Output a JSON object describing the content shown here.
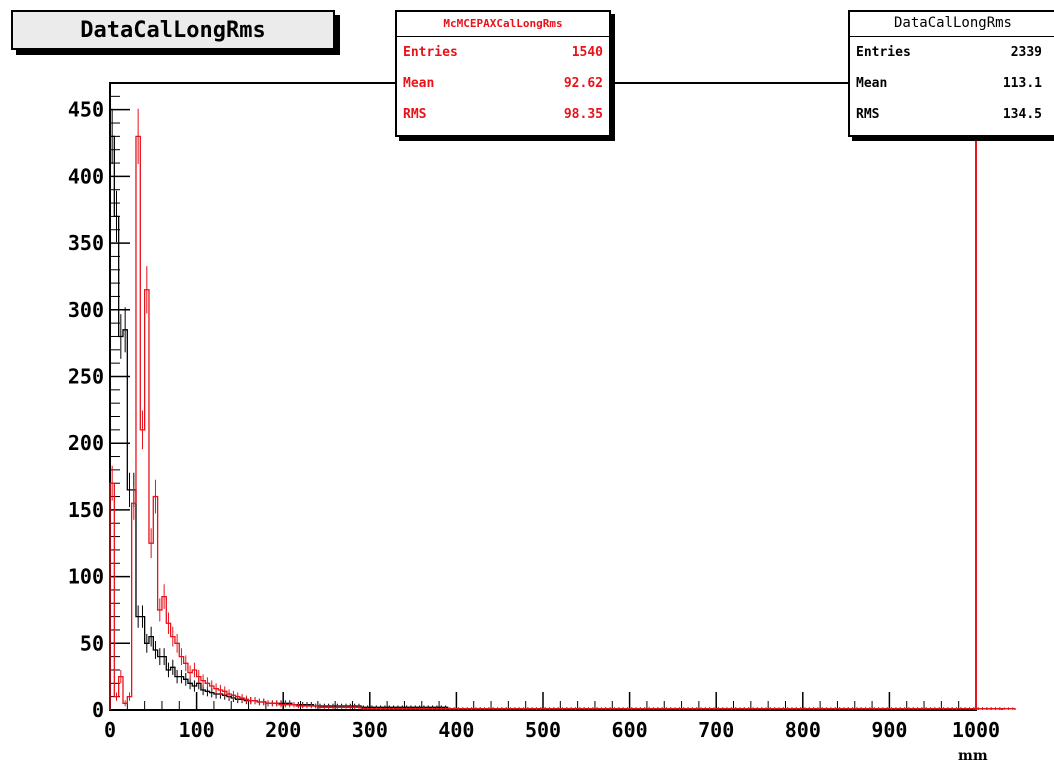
{
  "title": "DataCalLongRms",
  "stats_mc": {
    "name": "McMCEPAXCalLongRms",
    "rows": [
      {
        "label": "Entries",
        "value": "1540"
      },
      {
        "label": "Mean",
        "value": "92.62"
      },
      {
        "label": "RMS",
        "value": "98.35"
      }
    ]
  },
  "stats_data": {
    "name": "DataCalLongRms",
    "rows": [
      {
        "label": "Entries",
        "value": "2339"
      },
      {
        "label": "Mean",
        "value": "113.1"
      },
      {
        "label": "RMS",
        "value": "134.5"
      }
    ]
  },
  "colors": {
    "data": "#000000",
    "mc": "#e8121b"
  },
  "chart_data": {
    "type": "histogram",
    "title": "DataCalLongRms",
    "xlabel": "mm",
    "ylabel": "",
    "xlim": [
      0,
      1000
    ],
    "ylim": [
      0,
      470
    ],
    "x_ticks": [
      0,
      100,
      200,
      300,
      400,
      500,
      600,
      700,
      800,
      900,
      1000
    ],
    "x_tick_labels": [
      "0",
      "100",
      "200",
      "300",
      "400",
      "500",
      "600",
      "700",
      "800",
      "900",
      "1000"
    ],
    "y_ticks": [
      0,
      50,
      100,
      150,
      200,
      250,
      300,
      350,
      400,
      450
    ],
    "y_tick_labels": [
      "0",
      "50",
      "100",
      "150",
      "200",
      "250",
      "300",
      "350",
      "400",
      "450"
    ],
    "bin_width": 5,
    "series": [
      {
        "name": "DataCalLongRms",
        "color": "#000000",
        "values": [
          430,
          370,
          280,
          285,
          165,
          165,
          70,
          70,
          50,
          55,
          45,
          40,
          40,
          30,
          32,
          25,
          25,
          23,
          20,
          18,
          20,
          15,
          14,
          13,
          12,
          12,
          11,
          10,
          9,
          8,
          8,
          7,
          7,
          7,
          6,
          6,
          5,
          5,
          5,
          5,
          5,
          5,
          4,
          4,
          4,
          4,
          4,
          3,
          3,
          3,
          3,
          3,
          3,
          3,
          3,
          3,
          3,
          3,
          2,
          2,
          2,
          2,
          2,
          2,
          2,
          2,
          2,
          2,
          2,
          2,
          2,
          2,
          2,
          2,
          2,
          2,
          2,
          2,
          1,
          1,
          1,
          1,
          1,
          1,
          1,
          1,
          1,
          1,
          1,
          1,
          1,
          1,
          1,
          1,
          1,
          1,
          1,
          1,
          1,
          1,
          1,
          1,
          1,
          1,
          1,
          1,
          1,
          1,
          1,
          1,
          1,
          1,
          1,
          1,
          1,
          1,
          1,
          1,
          1,
          1,
          1,
          1,
          1,
          1,
          1,
          1,
          1,
          1,
          1,
          1,
          1,
          1,
          1,
          1,
          1,
          1,
          1,
          1,
          1,
          1,
          1,
          1,
          1,
          1,
          1,
          1,
          1,
          1,
          1,
          1,
          1,
          1,
          1,
          1,
          1,
          1,
          1,
          1,
          1,
          1,
          1,
          1,
          1,
          1,
          1,
          1,
          1,
          1,
          1,
          1,
          1,
          1,
          1,
          1,
          1,
          1,
          1,
          1,
          1,
          1,
          1,
          1,
          1,
          1,
          1,
          1,
          1,
          1,
          1,
          1,
          1,
          1,
          1,
          1,
          1,
          1,
          1,
          1,
          1,
          1,
          1,
          1,
          1,
          1,
          1,
          1
        ]
      },
      {
        "name": "McMCEPAXCalLongRms",
        "color": "#e8121b",
        "values": [
          170,
          10,
          25,
          5,
          10,
          155,
          430,
          210,
          315,
          125,
          160,
          75,
          85,
          65,
          55,
          50,
          40,
          35,
          28,
          30,
          25,
          22,
          20,
          18,
          16,
          15,
          14,
          12,
          11,
          10,
          9,
          8,
          7,
          7,
          6,
          6,
          5,
          5,
          5,
          4,
          4,
          4,
          4,
          3,
          3,
          3,
          3,
          3,
          2,
          2,
          2,
          2,
          2,
          2,
          2,
          2,
          2,
          2,
          1,
          1,
          1,
          1,
          1,
          1,
          1,
          1,
          1,
          1,
          1,
          1,
          1,
          1,
          1,
          1,
          1,
          1,
          1,
          1,
          1,
          1,
          1,
          1,
          1,
          1,
          1,
          1,
          1,
          1,
          1,
          1,
          1,
          1,
          1,
          1,
          1,
          1,
          1,
          1,
          1,
          1,
          1,
          1,
          1,
          1,
          1,
          1,
          1,
          1,
          1,
          1,
          1,
          1,
          1,
          1,
          1,
          1,
          1,
          1,
          1,
          1,
          1,
          1,
          1,
          1,
          1,
          1,
          1,
          1,
          1,
          1,
          1,
          1,
          1,
          1,
          1,
          1,
          1,
          1,
          1,
          1,
          1,
          1,
          1,
          1,
          1,
          1,
          1,
          1,
          1,
          1,
          1,
          1,
          1,
          1,
          1,
          1,
          1,
          1,
          1,
          1,
          1,
          1,
          1,
          1,
          1,
          1,
          1,
          1,
          1,
          1,
          1,
          1,
          1,
          1,
          1,
          1,
          1,
          1,
          1,
          1,
          1,
          1,
          1,
          1,
          1,
          1,
          1,
          1,
          1,
          1,
          1,
          1,
          1,
          1,
          1,
          1,
          1,
          1,
          1,
          1,
          1,
          1,
          1,
          1,
          1,
          1,
          1,
          1,
          1
        ]
      }
    ],
    "grid": false,
    "legend": "stat boxes top"
  }
}
